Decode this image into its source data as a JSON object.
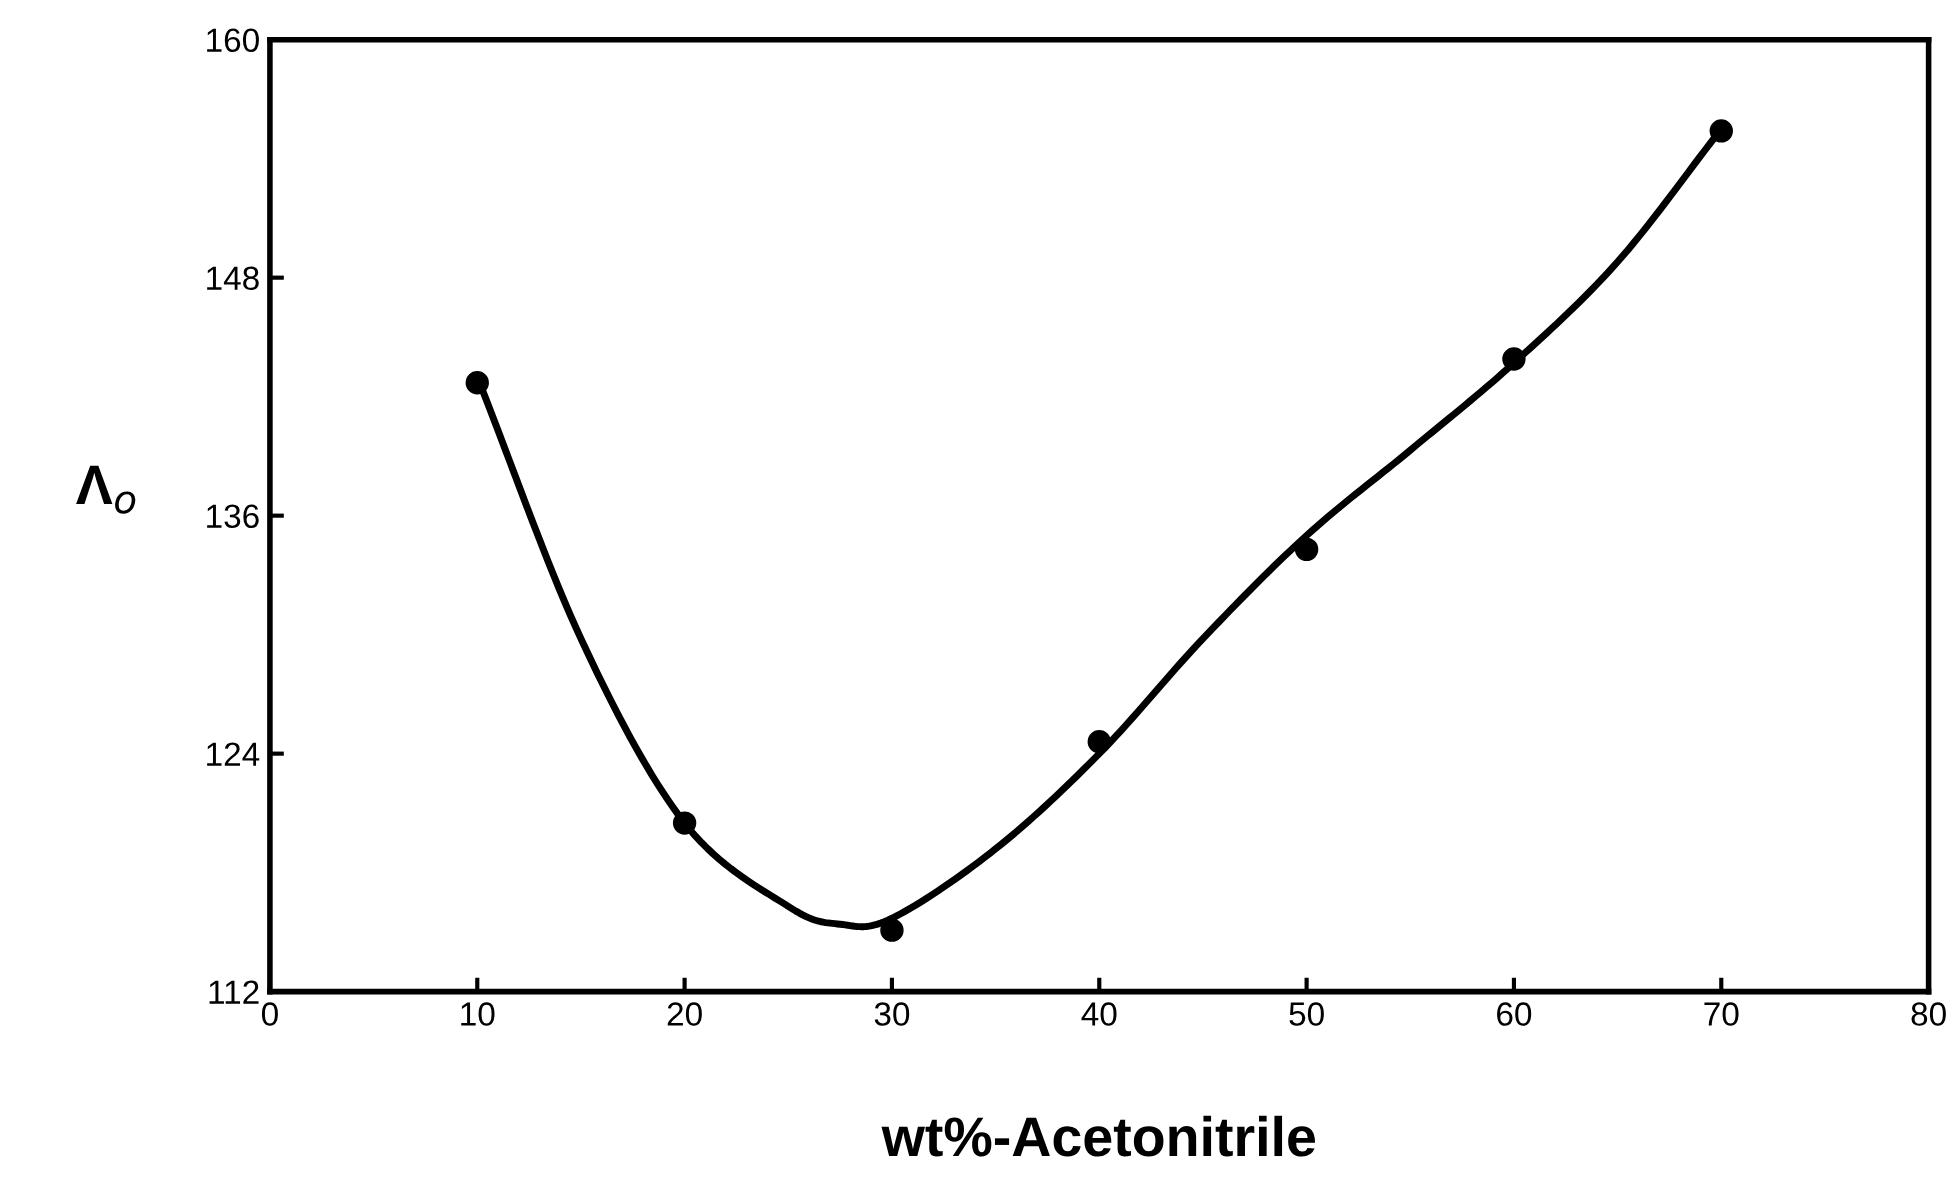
{
  "chart_data": {
    "type": "scatter",
    "xlabel": "wt%-Acetonitrile",
    "ylabel": "Λ$_{o}$",
    "xlim": [
      0,
      80
    ],
    "xticks": [
      0,
      10,
      20,
      30,
      40,
      50,
      60,
      70,
      80
    ],
    "ylim": [
      112,
      160
    ],
    "yticks": [
      112,
      124,
      136,
      148,
      160
    ],
    "grid": false,
    "legend": false,
    "series": [
      {
        "color": "#000000",
        "marker": "circle",
        "x": [
          10,
          20,
          30,
          40,
          50,
          60,
          70
        ],
        "values": [
          142.7,
          120.5,
          115.1,
          124.6,
          134.3,
          143.9,
          155.4
        ]
      },
      {
        "type": "line",
        "color": "#000000",
        "marker": "none",
        "x": [
          10,
          15,
          20,
          25,
          27.5,
          30,
          35,
          40,
          45,
          50,
          55,
          60,
          65,
          70
        ],
        "values": [
          143,
          129.8,
          120.5,
          116.3,
          115.4,
          115.7,
          119.2,
          124.0,
          129.8,
          135.0,
          139.3,
          143.7,
          148.8,
          155.5
        ]
      }
    ]
  }
}
